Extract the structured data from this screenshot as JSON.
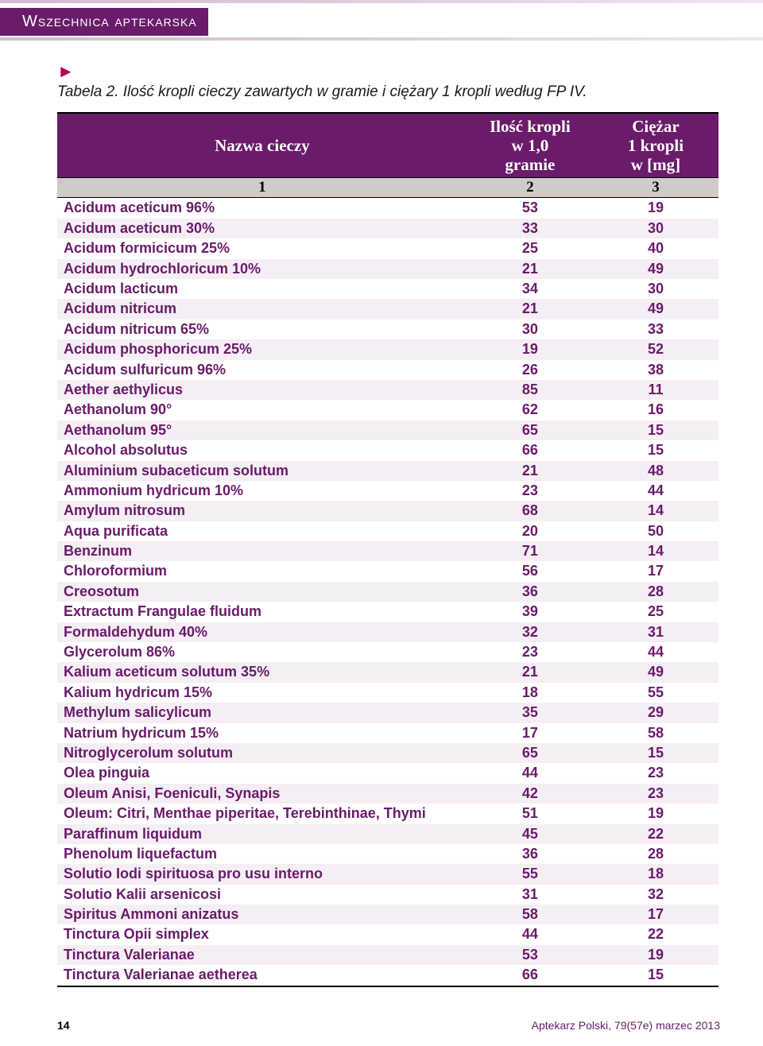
{
  "header": {
    "section": "Wszechnica aptekarska"
  },
  "caption": {
    "marker": "►",
    "text": "Tabela 2. Ilość kropli cieczy zawartych w gramie i ciężary 1 kropli według FP IV."
  },
  "table": {
    "columns": [
      {
        "label": "Nazwa cieczy",
        "num": "1"
      },
      {
        "label": "Ilość kropli\nw 1,0\ngramie",
        "num": "2"
      },
      {
        "label": "Ciężar\n1 kropli\nw [mg]",
        "num": "3"
      }
    ],
    "rows": [
      [
        "Acidum aceticum 96%",
        "53",
        "19"
      ],
      [
        "Acidum aceticum 30%",
        "33",
        "30"
      ],
      [
        "Acidum formicicum 25%",
        "25",
        "40"
      ],
      [
        "Acidum hydrochloricum 10%",
        "21",
        "49"
      ],
      [
        "Acidum lacticum",
        "34",
        "30"
      ],
      [
        "Acidum nitricum",
        "21",
        "49"
      ],
      [
        "Acidum nitricum 65%",
        "30",
        "33"
      ],
      [
        "Acidum phosphoricum 25%",
        "19",
        "52"
      ],
      [
        "Acidum sulfuricum 96%",
        "26",
        "38"
      ],
      [
        "Aether aethylicus",
        "85",
        "11"
      ],
      [
        "Aethanolum 90°",
        "62",
        "16"
      ],
      [
        "Aethanolum 95°",
        "65",
        "15"
      ],
      [
        "Alcohol absolutus",
        "66",
        "15"
      ],
      [
        "Aluminium subaceticum solutum",
        "21",
        "48"
      ],
      [
        "Ammonium hydricum 10%",
        "23",
        "44"
      ],
      [
        "Amylum nitrosum",
        "68",
        "14"
      ],
      [
        "Aqua purificata",
        "20",
        "50"
      ],
      [
        "Benzinum",
        "71",
        "14"
      ],
      [
        "Chloroformium",
        "56",
        "17"
      ],
      [
        "Creosotum",
        "36",
        "28"
      ],
      [
        "Extractum Frangulae fluidum",
        "39",
        "25"
      ],
      [
        "Formaldehydum 40%",
        "32",
        "31"
      ],
      [
        "Glycerolum 86%",
        "23",
        "44"
      ],
      [
        "Kalium aceticum solutum 35%",
        "21",
        "49"
      ],
      [
        "Kalium hydricum 15%",
        "18",
        "55"
      ],
      [
        "Methylum salicylicum",
        "35",
        "29"
      ],
      [
        "Natrium hydricum 15%",
        "17",
        "58"
      ],
      [
        "Nitroglycerolum solutum",
        "65",
        "15"
      ],
      [
        "Olea pinguia",
        "44",
        "23"
      ],
      [
        "Oleum Anisi, Foeniculi, Synapis",
        "42",
        "23"
      ],
      [
        "Oleum: Citri, Menthae piperitae, Terebinthinae, Thymi",
        "51",
        "19"
      ],
      [
        "Paraffinum liquidum",
        "45",
        "22"
      ],
      [
        "Phenolum liquefactum",
        "36",
        "28"
      ],
      [
        "Solutio Iodi spirituosa pro usu interno",
        "55",
        "18"
      ],
      [
        "Solutio Kalii arsenicosi",
        "31",
        "32"
      ],
      [
        "Spiritus Ammoni anizatus",
        "58",
        "17"
      ],
      [
        "Tinctura Opii simplex",
        "44",
        "22"
      ],
      [
        "Tinctura Valerianae",
        "53",
        "19"
      ],
      [
        "Tinctura Valerianae aetherea",
        "66",
        "15"
      ]
    ]
  },
  "footer": {
    "page": "14",
    "pub": "Aptekarz Polski, 79(57e) marzec 2013"
  },
  "colors": {
    "brand": "#6a1b6a",
    "grey": "#d0cbc6",
    "accent": "#b30059"
  }
}
